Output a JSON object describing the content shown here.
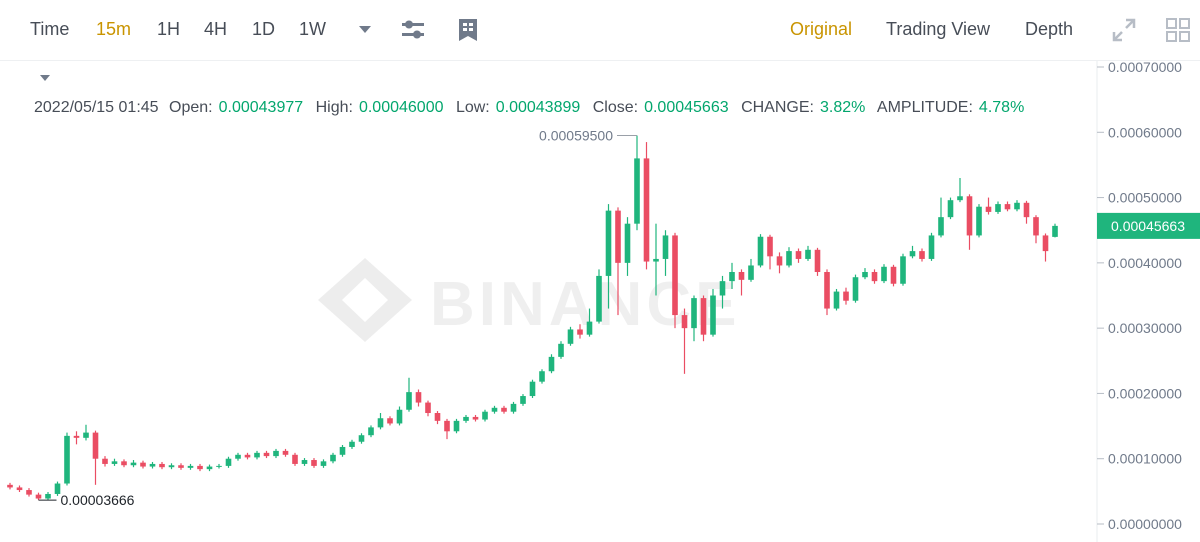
{
  "toolbar": {
    "intervals": [
      "Time",
      "15m",
      "1H",
      "4H",
      "1D",
      "1W"
    ],
    "active_interval": "15m",
    "views": [
      "Original",
      "Trading View",
      "Depth"
    ],
    "active_view": "Original"
  },
  "info": {
    "time": "2022/05/15 01:45",
    "items": [
      {
        "label": "Open:",
        "value": "0.00043977"
      },
      {
        "label": "High:",
        "value": "0.00046000"
      },
      {
        "label": "Low:",
        "value": "0.00043899"
      },
      {
        "label": "Close:",
        "value": "0.00045663"
      },
      {
        "label": "CHANGE:",
        "value": "3.82%"
      },
      {
        "label": "AMPLITUDE:",
        "value": "4.78%"
      }
    ]
  },
  "chart_data": {
    "type": "candlestick",
    "watermark": "BINANCE",
    "up_color": "#1fb57d",
    "down_color": "#ea4d63",
    "ylim": [
      0,
      0.0007
    ],
    "yticks": [
      {
        "value": 0,
        "label": "0.00000000"
      },
      {
        "value": 0.0001,
        "label": "0.00010000"
      },
      {
        "value": 0.0002,
        "label": "0.00020000"
      },
      {
        "value": 0.0003,
        "label": "0.00030000"
      },
      {
        "value": 0.0004,
        "label": "0.00040000"
      },
      {
        "value": 0.0005,
        "label": "0.00050000"
      },
      {
        "value": 0.0006,
        "label": "0.00060000"
      },
      {
        "value": 0.0007,
        "label": "0.00070000"
      }
    ],
    "annotations": {
      "max_label": "0.00059500",
      "min_label": "0.00003666"
    },
    "open": [
      6e-05,
      5.6e-05,
      5.2e-05,
      4.5e-05,
      3.9e-05,
      4.6e-05,
      6.2e-05,
      0.000135,
      0.000132,
      0.00014,
      0.0001,
      9.2e-05,
      9.6e-05,
      9e-05,
      9.4e-05,
      8.8e-05,
      9.2e-05,
      8.7e-05,
      9e-05,
      8.6e-05,
      8.9e-05,
      8.4e-05,
      8.8e-05,
      8.9e-05,
      0.0001,
      0.000106,
      0.000102,
      0.000109,
      0.000104,
      0.000112,
      0.000106,
      9.2e-05,
      9.8e-05,
      8.9e-05,
      9.6e-05,
      0.000106,
      0.000118,
      0.000126,
      0.000136,
      0.000148,
      0.000162,
      0.000154,
      0.000175,
      0.000202,
      0.000186,
      0.00017,
      0.000158,
      0.000142,
      0.000158,
      0.000164,
      0.00016,
      0.000172,
      0.000178,
      0.000172,
      0.000184,
      0.000196,
      0.000218,
      0.000234,
      0.000256,
      0.000276,
      0.000298,
      0.00029,
      0.00031,
      0.00038,
      0.00048,
      0.0004,
      0.00046,
      0.00056,
      0.000402,
      0.000406,
      0.000442,
      0.00032,
      0.0003,
      0.000346,
      0.00029,
      0.00035,
      0.000372,
      0.000386,
      0.000374,
      0.000396,
      0.00044,
      0.00041,
      0.000396,
      0.000418,
      0.000406,
      0.00042,
      0.000386,
      0.00033,
      0.000356,
      0.000342,
      0.000378,
      0.000386,
      0.000372,
      0.000394,
      0.000368,
      0.00041,
      0.000418,
      0.000406,
      0.000442,
      0.00047,
      0.000496,
      0.000502,
      0.000442,
      0.000486,
      0.000478,
      0.00049,
      0.000482,
      0.000492,
      0.00047,
      0.000442,
      0.00043977
    ],
    "high": [
      6.3e-05,
      5.9e-05,
      5.5e-05,
      4.8e-05,
      4.9e-05,
      6.5e-05,
      0.00014,
      0.000142,
      0.000152,
      0.000143,
      0.000104,
      0.0001,
      9.9e-05,
      9.8e-05,
      9.7e-05,
      9.5e-05,
      9.5e-05,
      9.3e-05,
      9.3e-05,
      9.2e-05,
      9.2e-05,
      9.1e-05,
      9.2e-05,
      0.000103,
      0.000109,
      0.000109,
      0.000112,
      0.000112,
      0.000115,
      0.000115,
      0.000109,
      0.000101,
      0.000101,
      9.9e-05,
      0.000109,
      0.000121,
      0.000129,
      0.000139,
      0.000151,
      0.00017,
      0.000165,
      0.00018,
      0.000224,
      0.000206,
      0.000189,
      0.000173,
      0.000161,
      0.000161,
      0.000167,
      0.000167,
      0.000175,
      0.000181,
      0.000181,
      0.000187,
      0.000199,
      0.000221,
      0.000237,
      0.00026,
      0.00028,
      0.000302,
      0.000306,
      0.00033,
      0.00039,
      0.00049,
      0.000485,
      0.00047,
      0.000595,
      0.000585,
      0.00046,
      0.00045,
      0.000446,
      0.00033,
      0.00035,
      0.00035,
      0.00036,
      0.00038,
      0.0004,
      0.00039,
      0.000406,
      0.000444,
      0.000443,
      0.000416,
      0.000424,
      0.000422,
      0.000426,
      0.000423,
      0.00039,
      0.00036,
      0.000362,
      0.000382,
      0.000392,
      0.00039,
      0.000398,
      0.000397,
      0.000414,
      0.000426,
      0.000422,
      0.000446,
      0.0005,
      0.0005,
      0.00053,
      0.000505,
      0.00049,
      0.0005,
      0.000494,
      0.000494,
      0.000496,
      0.000495,
      0.000473,
      0.000445,
      0.00046
    ],
    "low": [
      5.3e-05,
      4.9e-05,
      4.2e-05,
      3.666e-05,
      3.7e-05,
      4.3e-05,
      5.9e-05,
      0.000122,
      0.000128,
      6e-05,
      8.8e-05,
      8.9e-05,
      8.7e-05,
      8.7e-05,
      8.5e-05,
      8.5e-05,
      8.4e-05,
      8.4e-05,
      8.3e-05,
      8.3e-05,
      8.1e-05,
      8.1e-05,
      8.5e-05,
      8.6e-05,
      9.7e-05,
      9.9e-05,
      9.9e-05,
      0.000101,
      0.000101,
      0.000103,
      8.9e-05,
      8.9e-05,
      8.6e-05,
      8.6e-05,
      9.3e-05,
      0.000103,
      0.000115,
      0.000123,
      0.000133,
      0.000145,
      0.000151,
      0.000151,
      0.000172,
      0.00018,
      0.000165,
      0.000153,
      0.00013,
      0.000139,
      0.000155,
      0.000157,
      0.000157,
      0.000169,
      0.000169,
      0.000169,
      0.000181,
      0.000193,
      0.000215,
      0.000231,
      0.000253,
      0.000273,
      0.000284,
      0.000287,
      0.000307,
      0.00033,
      0.00032,
      0.00038,
      0.00045,
      0.00039,
      0.00035,
      0.00038,
      0.0003,
      0.00023,
      0.00028,
      0.00028,
      0.000287,
      0.00033,
      0.00036,
      0.00035,
      0.000371,
      0.000393,
      0.00039,
      0.000384,
      0.000393,
      0.0004,
      0.000403,
      0.00038,
      0.00032,
      0.000327,
      0.000336,
      0.000339,
      0.000375,
      0.000368,
      0.000369,
      0.000364,
      0.000365,
      0.000407,
      0.000402,
      0.000403,
      0.000439,
      0.000467,
      0.000493,
      0.00042,
      0.000439,
      0.000474,
      0.000475,
      0.000479,
      0.000479,
      0.00046,
      0.00043,
      0.000402,
      0.00043899
    ],
    "close": [
      5.6e-05,
      5.2e-05,
      4.5e-05,
      3.9e-05,
      4.6e-05,
      6.2e-05,
      0.000135,
      0.000132,
      0.00014,
      0.0001,
      9.2e-05,
      9.6e-05,
      9e-05,
      9.4e-05,
      8.8e-05,
      9.2e-05,
      8.7e-05,
      9e-05,
      8.6e-05,
      8.9e-05,
      8.4e-05,
      8.8e-05,
      8.9e-05,
      0.0001,
      0.000106,
      0.000102,
      0.000109,
      0.000104,
      0.000112,
      0.000106,
      9.2e-05,
      9.8e-05,
      8.9e-05,
      9.6e-05,
      0.000106,
      0.000118,
      0.000126,
      0.000136,
      0.000148,
      0.000162,
      0.000154,
      0.000175,
      0.000202,
      0.000186,
      0.00017,
      0.000158,
      0.000142,
      0.000158,
      0.000164,
      0.00016,
      0.000172,
      0.000178,
      0.000172,
      0.000184,
      0.000196,
      0.000218,
      0.000234,
      0.000256,
      0.000276,
      0.000298,
      0.00029,
      0.00031,
      0.00038,
      0.00048,
      0.0004,
      0.00046,
      0.00056,
      0.000402,
      0.000406,
      0.000442,
      0.00032,
      0.0003,
      0.000346,
      0.00029,
      0.00035,
      0.000372,
      0.000386,
      0.000374,
      0.000396,
      0.00044,
      0.00041,
      0.000396,
      0.000418,
      0.000406,
      0.00042,
      0.000386,
      0.00033,
      0.000356,
      0.000342,
      0.000378,
      0.000386,
      0.000372,
      0.000394,
      0.000368,
      0.00041,
      0.000418,
      0.000406,
      0.000442,
      0.00047,
      0.000496,
      0.000502,
      0.000442,
      0.000486,
      0.000478,
      0.00049,
      0.000482,
      0.000492,
      0.00047,
      0.000442,
      0.000418,
      0.00045663
    ]
  }
}
